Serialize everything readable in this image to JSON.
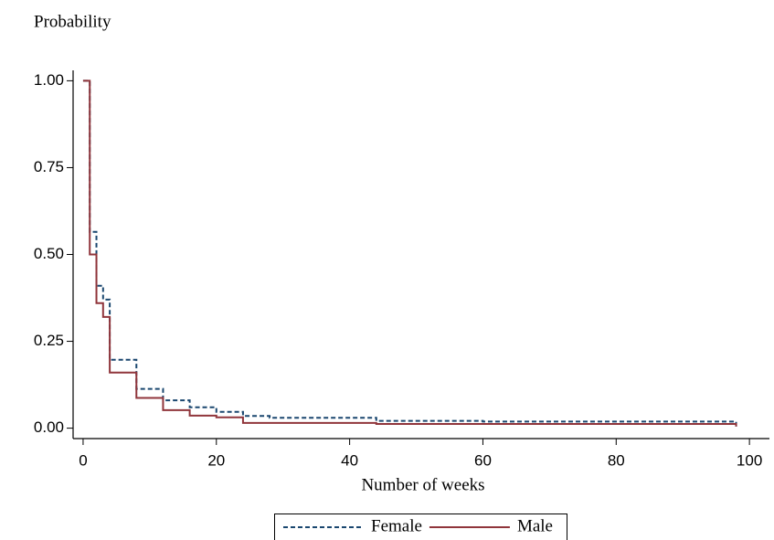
{
  "chart_data": {
    "type": "step",
    "y_label": "Probability",
    "x_label": "Number of weeks",
    "x": [
      0,
      1,
      2,
      3,
      4,
      8,
      12,
      16,
      20,
      24,
      28,
      40,
      44,
      60,
      98
    ],
    "series": [
      {
        "name": "Female",
        "color": "#1a476f",
        "dash": true,
        "values": [
          1,
          0.565,
          0.41,
          0.37,
          0.197,
          0.113,
          0.08,
          0.06,
          0.047,
          0.035,
          0.03,
          0.03,
          0.021,
          0.019,
          0.005
        ]
      },
      {
        "name": "Male",
        "color": "#90353b",
        "dash": false,
        "values": [
          1,
          0.5,
          0.36,
          0.32,
          0.16,
          0.087,
          0.052,
          0.036,
          0.031,
          0.015,
          0.015,
          0.015,
          0.012,
          0.012,
          0.005
        ]
      }
    ],
    "xlim": [
      -1.5,
      103
    ],
    "ylim": [
      -0.03,
      1.03
    ],
    "xticks": [
      0,
      20,
      40,
      60,
      80,
      100
    ],
    "yticks": [
      {
        "value": 0,
        "label": "0.00"
      },
      {
        "value": 0.25,
        "label": "0.25"
      },
      {
        "value": 0.5,
        "label": "0.50"
      },
      {
        "value": 0.75,
        "label": "0.75"
      },
      {
        "value": 1,
        "label": "1.00"
      }
    ],
    "legend": "bottom"
  }
}
